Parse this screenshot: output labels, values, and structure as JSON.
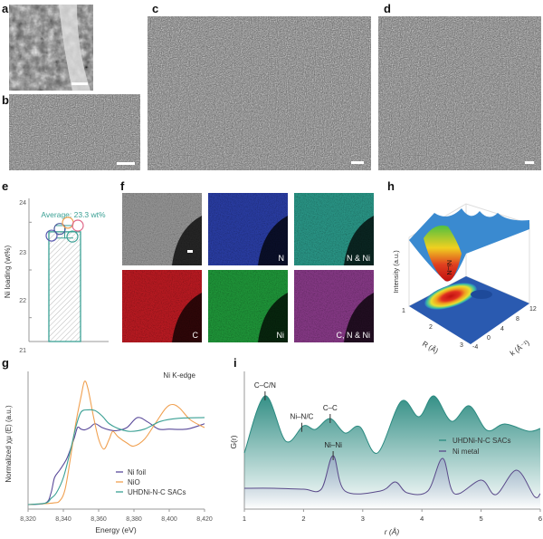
{
  "panel_labels": {
    "a": "a",
    "b": "b",
    "c": "c",
    "d": "d",
    "e": "e",
    "f": "f",
    "g": "g",
    "h": "h",
    "i": "i"
  },
  "panel_f": {
    "tiles": [
      "",
      "N",
      "N & Ni",
      "C",
      "Ni",
      "C, N & Ni"
    ],
    "colors": [
      "#9a9a9a",
      "#2a3ea8",
      "#2a9a8a",
      "#c01a22",
      "#1f9a3a",
      "#8a3a8a"
    ]
  },
  "chart_data": [
    {
      "panel": "e",
      "type": "bar",
      "ylabel": "Ni loading (wt%)",
      "ylim": [
        21,
        24
      ],
      "yticks": [
        "21",
        "22",
        "23",
        "24"
      ],
      "annotation": "Average: 23.3 wt%",
      "values": [
        23.3
      ],
      "error": 0.13,
      "points": [
        {
          "value": 23.22,
          "color": "#5a5ab0"
        },
        {
          "value": 23.36,
          "color": "#4a5a9a"
        },
        {
          "value": 23.49,
          "color": "#f0a050"
        },
        {
          "value": 23.43,
          "color": "#e06a8a"
        },
        {
          "value": 23.2,
          "color": "#3aa094"
        }
      ],
      "bar_color": "#3aa094"
    },
    {
      "panel": "g",
      "type": "line",
      "title": "Ni K-edge",
      "xlabel": "Energy (eV)",
      "ylabel": "Normalized χμ (E) (a.u.)",
      "xlim": [
        8320,
        8420
      ],
      "ylim": [
        -0.05,
        1.7
      ],
      "xticks": [
        "8,320",
        "8,340",
        "8,360",
        "8,380",
        "8,400",
        "8,420"
      ],
      "series": [
        {
          "name": "Ni foil",
          "color": "#5a4a9a",
          "x": [
            8320,
            8330,
            8333,
            8335,
            8338,
            8342,
            8346,
            8348,
            8350,
            8352,
            8355,
            8358,
            8362,
            8366,
            8370,
            8376,
            8382,
            8388,
            8394,
            8400,
            8410,
            8420
          ],
          "y": [
            0,
            0.02,
            0.15,
            0.35,
            0.45,
            0.6,
            0.85,
            1.0,
            0.98,
            0.97,
            1.0,
            1.05,
            1.0,
            0.97,
            0.96,
            1.0,
            1.13,
            1.07,
            0.98,
            0.98,
            0.98,
            1.05
          ]
        },
        {
          "name": "NiO",
          "color": "#f0a050",
          "x": [
            8320,
            8334,
            8338,
            8341,
            8344,
            8347,
            8350,
            8352,
            8354,
            8357,
            8360,
            8363,
            8366,
            8368,
            8371,
            8376,
            8380,
            8386,
            8392,
            8398,
            8402,
            8406,
            8412,
            8420
          ],
          "y": [
            0,
            0.02,
            0.05,
            0.2,
            0.6,
            1.05,
            1.4,
            1.6,
            1.5,
            1.15,
            0.85,
            0.72,
            0.85,
            0.95,
            0.88,
            0.8,
            0.76,
            0.85,
            1.05,
            1.25,
            1.3,
            1.25,
            1.1,
            1.0
          ]
        },
        {
          "name": "UHDNi-N-C SACs",
          "color": "#3aa094",
          "x": [
            8320,
            8330,
            8333,
            8336,
            8340,
            8344,
            8347,
            8350,
            8354,
            8358,
            8362,
            8366,
            8372,
            8378,
            8386,
            8395,
            8405,
            8420
          ],
          "y": [
            0,
            0.02,
            0.08,
            0.15,
            0.35,
            0.7,
            1.0,
            1.2,
            1.23,
            1.22,
            1.15,
            1.05,
            0.98,
            0.95,
            0.98,
            1.08,
            1.12,
            1.13
          ]
        }
      ],
      "legend": "bottom-right"
    },
    {
      "panel": "h",
      "type": "surface",
      "zlabel": "Intensity (a.u.)",
      "xlabel": "R (Å)",
      "ylabel": "k (Å⁻¹)",
      "xticks": [
        "1",
        "2",
        "3"
      ],
      "yticks": [
        "-4",
        "0",
        "4",
        "8",
        "12"
      ],
      "annotation": "Ni–N"
    },
    {
      "panel": "i",
      "type": "area",
      "xlabel": "r (Å)",
      "ylabel": "G(r)",
      "xlim": [
        1,
        6
      ],
      "ylim": [
        0,
        1.4
      ],
      "xticks": [
        "1",
        "2",
        "3",
        "4",
        "5",
        "6"
      ],
      "series": [
        {
          "name": "UHDNi-N-C SACs",
          "color": "#2a8a80",
          "x": [
            1.0,
            1.35,
            1.7,
            2.0,
            2.2,
            2.45,
            2.7,
            2.95,
            3.25,
            3.65,
            3.95,
            4.2,
            4.5,
            4.8,
            5.1,
            5.4,
            5.8,
            6.0
          ],
          "y": [
            0.62,
            1.25,
            0.75,
            0.92,
            0.88,
            1.0,
            0.84,
            0.91,
            0.62,
            1.19,
            1.02,
            1.25,
            0.97,
            1.14,
            0.87,
            0.94,
            0.86,
            0.89
          ]
        },
        {
          "name": "Ni metal",
          "color": "#5a4a8a",
          "x": [
            1.0,
            1.5,
            2.0,
            2.3,
            2.5,
            2.7,
            3.3,
            3.55,
            3.75,
            4.1,
            4.35,
            4.55,
            5.0,
            5.25,
            5.6,
            5.9,
            6.0
          ],
          "y": [
            0.23,
            0.23,
            0.22,
            0.22,
            0.59,
            0.2,
            0.2,
            0.3,
            0.18,
            0.2,
            0.56,
            0.17,
            0.32,
            0.16,
            0.43,
            0.14,
            0.17
          ]
        }
      ],
      "annotations": [
        {
          "text": "C–C/N",
          "x": 1.35,
          "series": 0
        },
        {
          "text": "Ni–N/C",
          "x": 1.97,
          "series": 0
        },
        {
          "text": "C–C",
          "x": 2.45,
          "series": 0
        },
        {
          "text": "Ni–Ni",
          "x": 2.5,
          "series": 1
        }
      ],
      "legend": "right"
    }
  ]
}
